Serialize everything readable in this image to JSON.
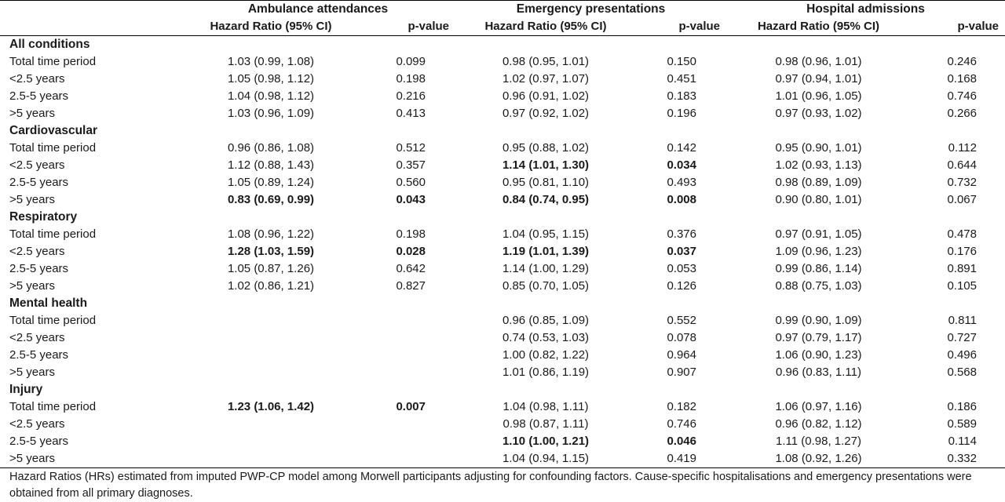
{
  "groups": {
    "ambulance": "Ambulance attendances",
    "emergency": "Emergency presentations",
    "hospital": "Hospital admissions"
  },
  "subheaders": {
    "hr": "Hazard Ratio (95% CI)",
    "p": "p-value"
  },
  "sections": [
    {
      "title": "All conditions",
      "rows": [
        {
          "label": "Total time period",
          "a_hr": "1.03 (0.99, 1.08)",
          "a_p": "0.099",
          "e_hr": "0.98 (0.95, 1.01)",
          "e_p": "0.150",
          "h_hr": "0.98 (0.96, 1.01)",
          "h_p": "0.246"
        },
        {
          "label": "<2.5 years",
          "a_hr": "1.05 (0.98, 1.12)",
          "a_p": "0.198",
          "e_hr": "1.02 (0.97, 1.07)",
          "e_p": "0.451",
          "h_hr": "0.97 (0.94, 1.01)",
          "h_p": "0.168"
        },
        {
          "label": "2.5-5 years",
          "a_hr": "1.04 (0.98, 1.12)",
          "a_p": "0.216",
          "e_hr": "0.96 (0.91, 1.02)",
          "e_p": "0.183",
          "h_hr": "1.01 (0.96, 1.05)",
          "h_p": "0.746"
        },
        {
          "label": ">5 years",
          "a_hr": "1.03 (0.96, 1.09)",
          "a_p": "0.413",
          "e_hr": "0.97 (0.92, 1.02)",
          "e_p": "0.196",
          "h_hr": "0.97 (0.93, 1.02)",
          "h_p": "0.266"
        }
      ]
    },
    {
      "title": "Cardiovascular",
      "rows": [
        {
          "label": "Total time period",
          "a_hr": "0.96 (0.86, 1.08)",
          "a_p": "0.512",
          "e_hr": "0.95 (0.88, 1.02)",
          "e_p": "0.142",
          "h_hr": "0.95 (0.90, 1.01)",
          "h_p": "0.112"
        },
        {
          "label": "<2.5 years",
          "a_hr": "1.12 (0.88, 1.43)",
          "a_p": "0.357",
          "e_hr": "1.14 (1.01, 1.30)",
          "e_p": "0.034",
          "h_hr": "1.02 (0.93, 1.13)",
          "h_p": "0.644",
          "bold": [
            "e"
          ]
        },
        {
          "label": "2.5-5 years",
          "a_hr": "1.05 (0.89, 1.24)",
          "a_p": "0.560",
          "e_hr": "0.95 (0.81, 1.10)",
          "e_p": "0.493",
          "h_hr": "0.98 (0.89, 1.09)",
          "h_p": "0.732"
        },
        {
          "label": ">5 years",
          "a_hr": "0.83 (0.69, 0.99)",
          "a_p": "0.043",
          "e_hr": "0.84 (0.74, 0.95)",
          "e_p": "0.008",
          "h_hr": "0.90 (0.80, 1.01)",
          "h_p": "0.067",
          "bold": [
            "a",
            "e"
          ]
        }
      ]
    },
    {
      "title": "Respiratory",
      "rows": [
        {
          "label": "Total time period",
          "a_hr": "1.08 (0.96, 1.22)",
          "a_p": "0.198",
          "e_hr": "1.04 (0.95, 1.15)",
          "e_p": "0.376",
          "h_hr": "0.97 (0.91, 1.05)",
          "h_p": "0.478"
        },
        {
          "label": "<2.5 years",
          "a_hr": "1.28 (1.03, 1.59)",
          "a_p": "0.028",
          "e_hr": "1.19 (1.01, 1.39)",
          "e_p": "0.037",
          "h_hr": "1.09 (0.96, 1.23)",
          "h_p": "0.176",
          "bold": [
            "a",
            "e"
          ]
        },
        {
          "label": "2.5-5 years",
          "a_hr": "1.05 (0.87, 1.26)",
          "a_p": "0.642",
          "e_hr": "1.14 (1.00, 1.29)",
          "e_p": "0.053",
          "h_hr": "0.99 (0.86, 1.14)",
          "h_p": "0.891"
        },
        {
          "label": ">5 years",
          "a_hr": "1.02 (0.86, 1.21)",
          "a_p": "0.827",
          "e_hr": "0.85 (0.70, 1.05)",
          "e_p": "0.126",
          "h_hr": "0.88 (0.75, 1.03)",
          "h_p": "0.105"
        }
      ]
    },
    {
      "title": "Mental health",
      "rows": [
        {
          "label": "Total time period",
          "a_hr": "",
          "a_p": "",
          "e_hr": "0.96 (0.85, 1.09)",
          "e_p": "0.552",
          "h_hr": "0.99 (0.90, 1.09)",
          "h_p": "0.811"
        },
        {
          "label": "<2.5 years",
          "a_hr": "",
          "a_p": "",
          "e_hr": "0.74 (0.53, 1.03)",
          "e_p": "0.078",
          "h_hr": "0.97 (0.79, 1.17)",
          "h_p": "0.727"
        },
        {
          "label": "2.5-5 years",
          "a_hr": "",
          "a_p": "",
          "e_hr": "1.00 (0.82, 1.22)",
          "e_p": "0.964",
          "h_hr": "1.06 (0.90, 1.23)",
          "h_p": "0.496"
        },
        {
          "label": ">5 years",
          "a_hr": "",
          "a_p": "",
          "e_hr": "1.01 (0.86, 1.19)",
          "e_p": "0.907",
          "h_hr": "0.96 (0.83, 1.11)",
          "h_p": "0.568"
        }
      ]
    },
    {
      "title": "Injury",
      "rows": [
        {
          "label": "Total time period",
          "a_hr": "1.23 (1.06, 1.42)",
          "a_p": "0.007",
          "e_hr": "1.04 (0.98, 1.11)",
          "e_p": "0.182",
          "h_hr": "1.06 (0.97, 1.16)",
          "h_p": "0.186",
          "bold": [
            "a"
          ]
        },
        {
          "label": "<2.5 years",
          "a_hr": "",
          "a_p": "",
          "e_hr": "0.98 (0.87, 1.11)",
          "e_p": "0.746",
          "h_hr": "0.96 (0.82, 1.12)",
          "h_p": "0.589"
        },
        {
          "label": "2.5-5 years",
          "a_hr": "",
          "a_p": "",
          "e_hr": "1.10 (1.00, 1.21)",
          "e_p": "0.046",
          "h_hr": "1.11 (0.98, 1.27)",
          "h_p": "0.114",
          "bold": [
            "e"
          ]
        },
        {
          "label": ">5 years",
          "a_hr": "",
          "a_p": "",
          "e_hr": "1.04 (0.94, 1.15)",
          "e_p": "0.419",
          "h_hr": "1.08 (0.92, 1.26)",
          "h_p": "0.332"
        }
      ]
    }
  ],
  "footnote": "Hazard Ratios (HRs) estimated from imputed PWP-CP model among Morwell participants adjusting for confounding factors. Cause-specific hospitalisations and emergency presentations were obtained from all primary diagnoses."
}
